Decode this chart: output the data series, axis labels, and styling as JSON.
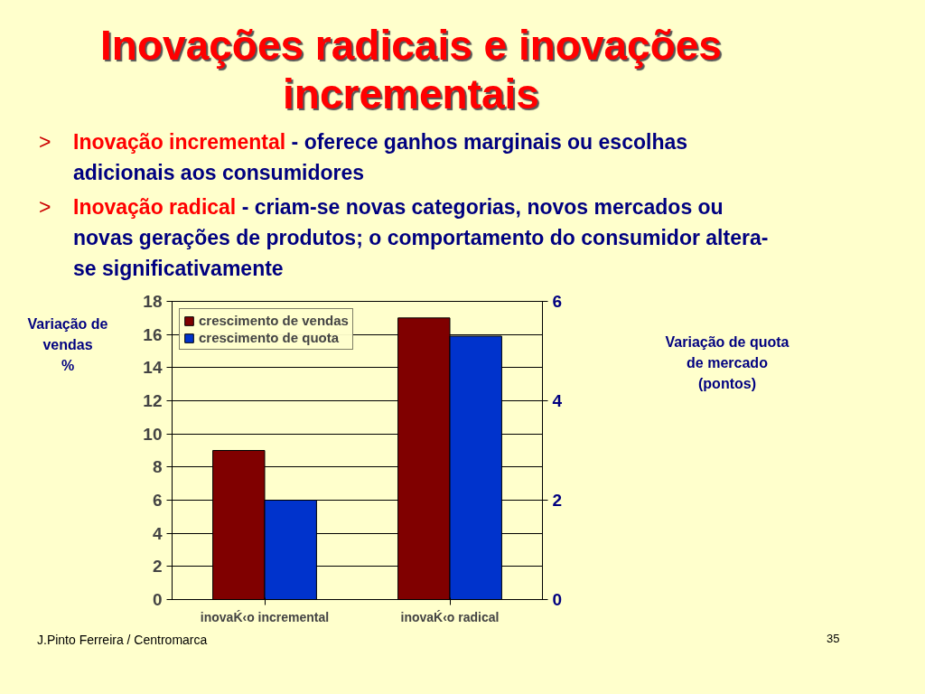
{
  "chart_data": {
    "type": "bar",
    "title": "Inovações radicais e inovações incrementais",
    "annotations": [
      ">",
      "Inovação incremental",
      "- oferece ganhos marginais ou escolhas adicionais aos consumidores",
      ">",
      "Inovação radical",
      "- criam-se novas categorias, novos mercados ou novas gerações de produtos; o comportamento do consumidor altera-se significativamente",
      "J.Pinto Ferreira / Centromarca",
      "35",
      "Variação de quota\nde mercado\n(pontos)"
    ],
    "ylabel": "Variação de vendas\n%",
    "categories": [
      "inovaḰ‹o incremental",
      "inovaḰ‹o radical"
    ],
    "series": [
      {
        "name": "crescimento de vendas",
        "color": "#800000",
        "values": [
          9,
          17
        ]
      },
      {
        "name": "crescimento de quota",
        "color": "#0033cc",
        "values": [
          2,
          5.3
        ],
        "axis": "y2"
      }
    ],
    "ylim": [
      0,
      18
    ],
    "yticks": [
      0,
      2,
      4,
      6,
      8,
      10,
      12,
      14,
      16,
      18
    ],
    "y2lim": [
      0,
      6
    ],
    "y2ticks": [
      0,
      2,
      4,
      6
    ],
    "grid": "y",
    "legend": "top left"
  }
}
